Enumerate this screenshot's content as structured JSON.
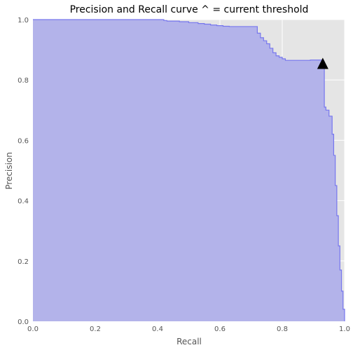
{
  "chart_data": {
    "type": "area",
    "title": "Precision and Recall curve ^ = current threshold",
    "xlabel": "Recall",
    "ylabel": "Precision",
    "xlim": [
      0.0,
      1.0
    ],
    "ylim": [
      0.0,
      1.0
    ],
    "grid": true,
    "x_ticks": [
      "0.0",
      "0.2",
      "0.4",
      "0.6",
      "0.8",
      "1.0"
    ],
    "y_ticks": [
      "0.0",
      "0.2",
      "0.4",
      "0.6",
      "0.8",
      "1.0"
    ],
    "series": [
      {
        "x": [
          0.0,
          0.42,
          0.43,
          0.47,
          0.5,
          0.53,
          0.55,
          0.57,
          0.59,
          0.61,
          0.63,
          0.65,
          0.68,
          0.71,
          0.72,
          0.73,
          0.74,
          0.75,
          0.76,
          0.77,
          0.78,
          0.79,
          0.8,
          0.81,
          0.83,
          0.85,
          0.87,
          0.89,
          0.91,
          0.93,
          0.935,
          0.94,
          0.95,
          0.96,
          0.965,
          0.97,
          0.975,
          0.98,
          0.985,
          0.99,
          0.995,
          1.0
        ],
        "y": [
          1.0,
          0.997,
          0.995,
          0.993,
          0.99,
          0.987,
          0.985,
          0.982,
          0.98,
          0.978,
          0.977,
          0.977,
          0.977,
          0.977,
          0.955,
          0.94,
          0.93,
          0.92,
          0.905,
          0.89,
          0.88,
          0.875,
          0.87,
          0.865,
          0.865,
          0.865,
          0.865,
          0.866,
          0.866,
          0.86,
          0.71,
          0.7,
          0.68,
          0.62,
          0.55,
          0.45,
          0.35,
          0.25,
          0.17,
          0.1,
          0.04,
          0.0
        ]
      }
    ],
    "threshold_marker": {
      "x": 0.93,
      "y": 0.855
    },
    "colors": {
      "fill": "#b3b3ea",
      "line": "#7777ee",
      "background": "#e5e5e5",
      "grid": "#ffffff",
      "marker": "#000000"
    }
  }
}
